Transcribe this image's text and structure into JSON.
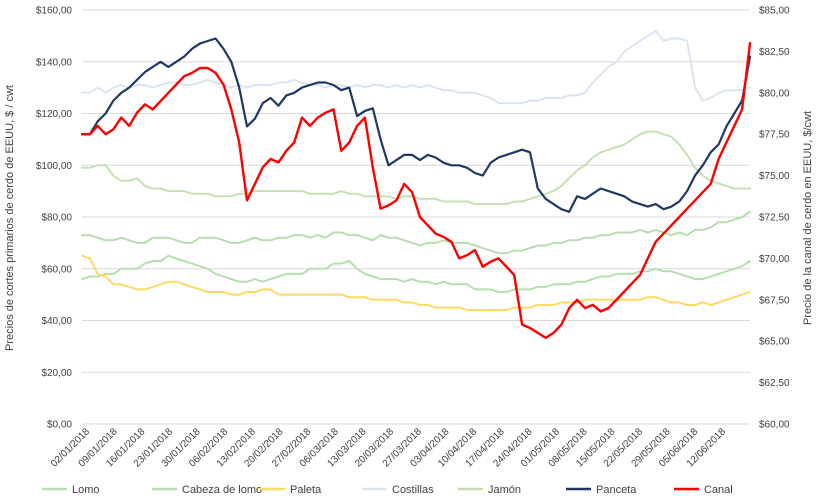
{
  "chart_data": {
    "type": "line",
    "title": "",
    "ylabel_left": "Precios de cortes primarios de cerdo de EEUU, $ / cwt",
    "ylabel_right": "Precio de la canal de cerdo en EEUU, $/cwt",
    "left_axis": {
      "min": 0,
      "max": 160,
      "step": 20,
      "tick_labels": [
        "$0,00",
        "$20,00",
        "$40,00",
        "$60,00",
        "$80,00",
        "$100,00",
        "$120,00",
        "$140,00",
        "$160,00"
      ]
    },
    "right_axis": {
      "min": 60,
      "max": 85,
      "step": 2.5,
      "tick_labels": [
        "$60,00",
        "$62,50",
        "$65,00",
        "$67,50",
        "$70,00",
        "$72,50",
        "$75,00",
        "$77,50",
        "$80,00",
        "$82,50",
        "$85,00"
      ]
    },
    "x_labels": [
      "02/01/2018",
      "09/01/2018",
      "16/01/2018",
      "23/01/2018",
      "30/01/2018",
      "06/02/2018",
      "13/02/2018",
      "20/02/2018",
      "27/02/2018",
      "06/03/2018",
      "13/03/2018",
      "20/03/2018",
      "27/03/2018",
      "03/04/2018",
      "10/04/2018",
      "17/04/2018",
      "24/04/2018",
      "01/05/2018",
      "08/05/2018",
      "15/05/2018",
      "22/05/2018",
      "29/05/2018",
      "05/06/2018",
      "12/06/2018"
    ],
    "grid": true,
    "legend_position": "bottom",
    "series": [
      {
        "name": "Lomo",
        "color": "#b7ddb0",
        "axis": "left",
        "values": [
          73,
          73,
          72,
          71,
          71,
          72,
          71,
          70,
          70,
          72,
          72,
          72,
          71,
          70,
          70,
          72,
          72,
          72,
          71,
          70,
          70,
          71,
          72,
          71,
          71,
          72,
          72,
          73,
          73,
          72,
          73,
          72,
          74,
          74,
          73,
          73,
          72,
          71,
          73,
          72,
          72,
          71,
          70,
          69,
          70,
          70,
          71,
          70,
          70,
          70,
          69,
          68,
          67,
          66,
          66,
          67,
          67,
          68,
          69,
          69,
          70,
          70,
          71,
          71,
          72,
          72,
          73,
          73,
          74,
          74,
          74,
          75,
          74,
          75,
          74,
          73,
          74,
          73,
          75,
          75,
          76,
          78,
          78,
          79,
          80,
          82
        ]
      },
      {
        "name": "Cabeza de lomo",
        "color": "#b7ddb0",
        "axis": "left",
        "values": [
          56,
          57,
          57,
          58,
          58,
          60,
          60,
          60,
          62,
          63,
          63,
          65,
          64,
          63,
          62,
          61,
          60,
          58,
          57,
          56,
          55,
          55,
          56,
          55,
          56,
          57,
          58,
          58,
          58,
          60,
          60,
          60,
          62,
          62,
          63,
          60,
          58,
          57,
          56,
          56,
          56,
          55,
          56,
          55,
          55,
          54,
          55,
          54,
          54,
          54,
          52,
          52,
          52,
          51,
          51,
          52,
          52,
          52,
          53,
          53,
          54,
          54,
          54,
          55,
          55,
          56,
          57,
          57,
          58,
          58,
          58,
          59,
          59,
          60,
          59,
          59,
          58,
          57,
          56,
          56,
          57,
          58,
          59,
          60,
          61,
          63
        ]
      },
      {
        "name": "Paleta",
        "color": "#ffd966",
        "axis": "left",
        "values": [
          65,
          64,
          58,
          57,
          54,
          54,
          53,
          52,
          52,
          53,
          54,
          55,
          55,
          54,
          53,
          52,
          51,
          51,
          51,
          50,
          50,
          51,
          51,
          52,
          52,
          50,
          50,
          50,
          50,
          50,
          50,
          50,
          50,
          50,
          49,
          49,
          49,
          48,
          48,
          48,
          48,
          47,
          47,
          46,
          46,
          45,
          45,
          45,
          45,
          44,
          44,
          44,
          44,
          44,
          44,
          45,
          45,
          45,
          46,
          46,
          46,
          47,
          47,
          47,
          48,
          48,
          48,
          48,
          48,
          48,
          48,
          48,
          49,
          49,
          48,
          47,
          47,
          46,
          46,
          47,
          46,
          47,
          48,
          49,
          50,
          51
        ]
      },
      {
        "name": "Costillas",
        "color": "#dbe5f1",
        "axis": "left",
        "values": [
          128,
          128,
          130,
          128,
          130,
          131,
          130,
          131,
          131,
          130,
          131,
          132,
          132,
          131,
          131,
          132,
          133,
          132,
          131,
          130,
          131,
          130,
          131,
          131,
          131,
          132,
          132,
          133,
          132,
          131,
          131,
          130,
          131,
          131,
          130,
          131,
          130,
          131,
          131,
          130,
          131,
          130,
          131,
          130,
          131,
          130,
          129,
          129,
          128,
          128,
          128,
          127,
          126,
          124,
          124,
          124,
          124,
          125,
          125,
          126,
          126,
          126,
          127,
          127,
          128,
          132,
          135,
          138,
          140,
          144,
          146,
          148,
          150,
          152,
          148,
          149,
          149,
          148,
          130,
          125,
          126,
          128,
          129,
          129,
          129,
          130
        ]
      },
      {
        "name": "Jamón",
        "color": "#c5e0b4",
        "axis": "left",
        "values": [
          99,
          99,
          100,
          100,
          96,
          94,
          94,
          95,
          92,
          91,
          91,
          90,
          90,
          90,
          89,
          89,
          89,
          88,
          88,
          88,
          89,
          89,
          90,
          90,
          90,
          90,
          90,
          90,
          90,
          89,
          89,
          89,
          89,
          90,
          89,
          89,
          88,
          88,
          88,
          88,
          87,
          88,
          88,
          87,
          87,
          87,
          86,
          86,
          86,
          86,
          85,
          85,
          85,
          85,
          85,
          86,
          86,
          87,
          88,
          89,
          90,
          92,
          95,
          98,
          100,
          103,
          105,
          106,
          107,
          108,
          110,
          112,
          113,
          113,
          112,
          111,
          108,
          104,
          99,
          96,
          94,
          93,
          92,
          91,
          91,
          91
        ]
      },
      {
        "name": "Panceta",
        "color": "#1f3864",
        "axis": "left",
        "values": [
          112,
          112,
          117,
          120,
          125,
          128,
          130,
          133,
          136,
          138,
          140,
          138,
          140,
          142,
          145,
          147,
          148,
          149,
          145,
          140,
          130,
          115,
          118,
          124,
          126,
          123,
          127,
          128,
          130,
          131,
          132,
          132,
          131,
          129,
          130,
          119,
          121,
          122,
          110,
          100,
          102,
          104,
          104,
          102,
          104,
          103,
          101,
          100,
          100,
          99,
          97,
          96,
          101,
          103,
          104,
          105,
          106,
          105,
          91,
          87,
          85,
          83,
          82,
          88,
          87,
          89,
          91,
          90,
          89,
          88,
          86,
          85,
          84,
          85,
          83,
          84,
          86,
          90,
          96,
          100,
          105,
          108,
          115,
          120,
          125,
          142
        ]
      },
      {
        "name": "Canal",
        "color": "#ff0000",
        "axis": "right",
        "values": [
          77.5,
          77.5,
          78.0,
          77.5,
          77.8,
          78.5,
          78.0,
          78.8,
          79.3,
          79.0,
          79.5,
          80.0,
          80.5,
          81.0,
          81.2,
          81.5,
          81.5,
          81.2,
          80.5,
          79.0,
          77.0,
          73.5,
          74.5,
          75.5,
          76.0,
          75.8,
          76.5,
          77.0,
          78.5,
          78.0,
          78.5,
          78.8,
          79.0,
          76.5,
          77.0,
          78.0,
          78.5,
          75.5,
          73.0,
          73.2,
          73.5,
          74.5,
          74.0,
          72.5,
          72.0,
          71.5,
          71.3,
          71.0,
          70.0,
          70.2,
          70.5,
          69.5,
          69.8,
          70.0,
          69.5,
          69.0,
          66.0,
          65.8,
          65.5,
          65.2,
          65.5,
          66.0,
          67.0,
          67.5,
          67.0,
          67.2,
          66.8,
          67.0,
          67.5,
          68.0,
          68.5,
          69.0,
          70.0,
          71.0,
          71.5,
          72.0,
          72.5,
          73.0,
          73.5,
          74.0,
          74.5,
          76.0,
          77.0,
          78.0,
          79.0,
          83.0
        ]
      }
    ]
  }
}
